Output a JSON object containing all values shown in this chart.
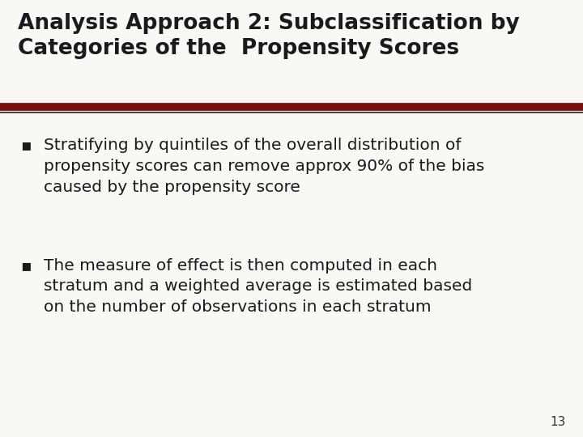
{
  "background_color": "#faf8f5",
  "title_line1": "Analysis Approach 2: Subclassification by",
  "title_line2": "Categories of the  Propensity Scores",
  "title_fontsize": 19,
  "title_color": "#1a1a1a",
  "divider_color_dark": "#7a1010",
  "divider_color_light": "#444444",
  "bullet1_line1": "Stratifying by quintiles of the overall distribution of",
  "bullet1_line2": "propensity scores can remove approx 90% of the bias",
  "bullet1_line3": "caused by the propensity score",
  "bullet2_line1": "The measure of effect is then computed in each",
  "bullet2_line2": "stratum and a weighted average is estimated based",
  "bullet2_line3": "on the number of observations in each stratum",
  "bullet_color": "#1a1a1a",
  "bullet_fontsize": 14.5,
  "page_number": "13",
  "page_number_fontsize": 11,
  "page_number_color": "#333333"
}
